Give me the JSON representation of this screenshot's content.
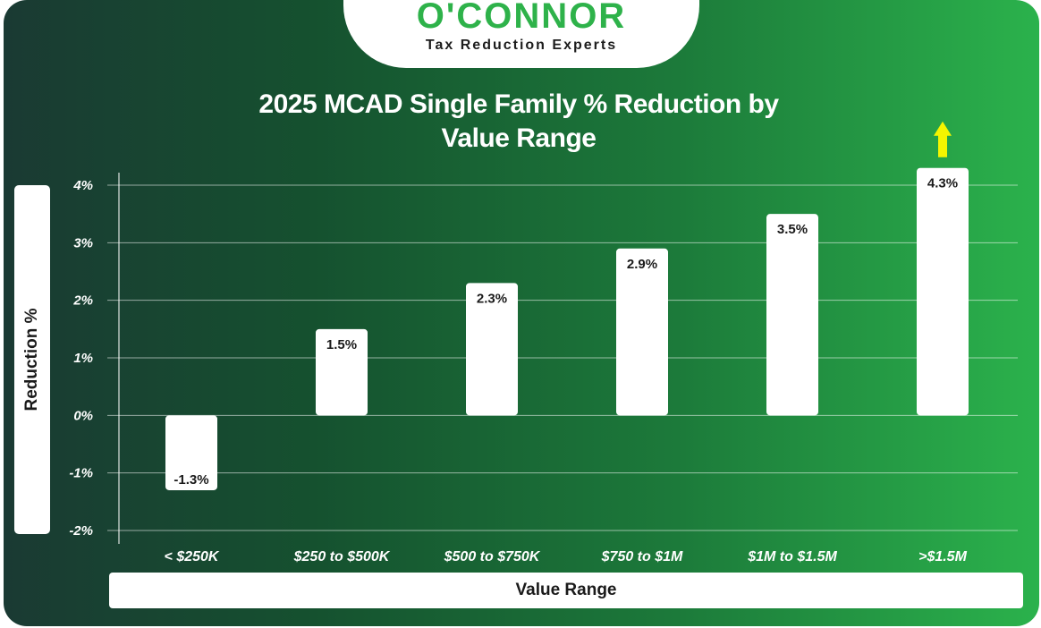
{
  "logo": {
    "name": "O'CONNOR",
    "tagline": "Tax Reduction Experts"
  },
  "colors": {
    "brand_green": "#2eb24a",
    "bar_fill": "#ffffff",
    "arrow": "#f5f500",
    "gradient_start": "#1a3a33",
    "gradient_end": "#2bb24c"
  },
  "chart_data": {
    "type": "bar",
    "title_line1": "2025 MCAD Single Family % Reduction by",
    "title_line2": "Value Range",
    "xlabel": "Value Range",
    "ylabel": "Reduction %",
    "ylim": [
      -2,
      4
    ],
    "yticks": [
      "4%",
      "3%",
      "2%",
      "1%",
      "0%",
      "-1%",
      "-2%"
    ],
    "categories": [
      "< $250K",
      "$250 to $500K",
      "$500 to $750K",
      "$750 to $1M",
      "$1M to $1.5M",
      ">$1.5M"
    ],
    "values": [
      -1.3,
      1.5,
      2.3,
      2.9,
      3.5,
      4.3
    ],
    "data_labels": [
      "-1.3%",
      "1.5%",
      "2.3%",
      "2.9%",
      "3.5%",
      "4.3%"
    ],
    "grid": true,
    "highlight": {
      "category": ">$1.5M",
      "icon": "up-arrow-icon"
    }
  }
}
